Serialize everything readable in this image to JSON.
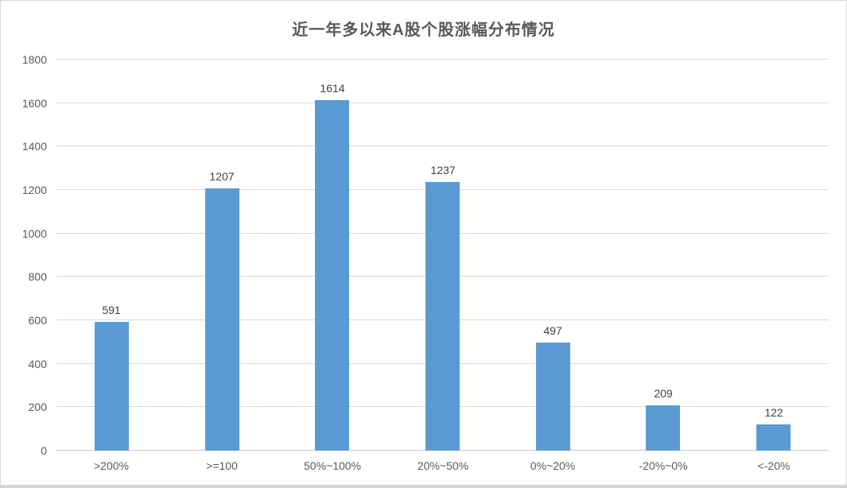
{
  "chart_data": {
    "type": "bar",
    "title": "近一年多以来A股个股涨幅分布情况",
    "categories": [
      ">200%",
      ">=100",
      "50%~100%",
      "20%~50%",
      "0%~20%",
      "-20%~0%",
      "<-20%"
    ],
    "values": [
      591,
      1207,
      1614,
      1237,
      497,
      209,
      122
    ],
    "data_labels": [
      "591",
      "1207",
      "1614",
      "1237",
      "497",
      "209",
      "122"
    ],
    "y_ticks": [
      0,
      200,
      400,
      600,
      800,
      1000,
      1200,
      1400,
      1600,
      1800
    ],
    "ylim": [
      0,
      1800
    ],
    "xlabel": "",
    "ylabel": "",
    "grid": true,
    "legend": "none",
    "colors": {
      "bar": "#5b9bd5",
      "gridline": "#d9d9d9",
      "axis_line": "#c9c9c9",
      "title_text": "#595959",
      "axis_text": "#595959",
      "data_label_text": "#404040",
      "frame_border": "#d9d9d9",
      "background": "#ffffff"
    }
  }
}
